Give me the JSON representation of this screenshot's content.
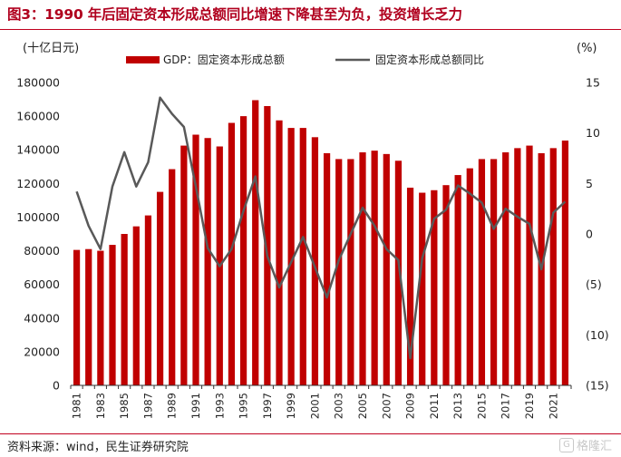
{
  "header": {
    "title": "图3：1990 年后固定资本形成总额同比增速下降甚至为负，投资增长乏力"
  },
  "footer": {
    "source": "资料来源：wind，民生证券研究院",
    "watermark": "格隆汇"
  },
  "colors": {
    "bar": "#c00000",
    "line": "#595959",
    "accent": "#c0001e"
  },
  "chart_data": {
    "type": "bar",
    "title": "",
    "left_unit": "(十亿日元)",
    "right_unit": "(%)",
    "legend_position": "top",
    "grid": false,
    "x": [
      1981,
      1982,
      1983,
      1984,
      1985,
      1986,
      1987,
      1988,
      1989,
      1990,
      1991,
      1992,
      1993,
      1994,
      1995,
      1996,
      1997,
      1998,
      1999,
      2000,
      2001,
      2002,
      2003,
      2004,
      2005,
      2006,
      2007,
      2008,
      2009,
      2010,
      2011,
      2012,
      2013,
      2014,
      2015,
      2016,
      2017,
      2018,
      2019,
      2020,
      2021,
      2022
    ],
    "x_tick_labels": [
      "1981",
      "1983",
      "1985",
      "1987",
      "1989",
      "1991",
      "1993",
      "1995",
      "1997",
      "1999",
      "2001",
      "2003",
      "2005",
      "2007",
      "2009",
      "2011",
      "2013",
      "2015",
      "2017",
      "2019",
      "2021"
    ],
    "ylim_left": [
      0,
      180000
    ],
    "yticks_left": [
      "0",
      "20000",
      "40000",
      "60000",
      "80000",
      "100000",
      "120000",
      "140000",
      "160000",
      "180000"
    ],
    "ylim_right": [
      -15,
      15
    ],
    "yticks_right": [
      "(15)",
      "(10)",
      "(5)",
      "0",
      "5",
      "10",
      "15"
    ],
    "series": [
      {
        "name": "GDP：固定资本形成总额",
        "type": "bar",
        "axis": "left",
        "values": [
          80500,
          81000,
          80000,
          83500,
          90000,
          94500,
          101000,
          115000,
          128500,
          142500,
          149000,
          147000,
          142000,
          156000,
          160000,
          169500,
          166000,
          157500,
          153000,
          153000,
          147500,
          138000,
          134500,
          134500,
          138500,
          139500,
          137500,
          133500,
          117500,
          114500,
          116000,
          119000,
          125000,
          129000,
          134500,
          134500,
          138500,
          141000,
          142500,
          138000,
          141000,
          145500
        ]
      },
      {
        "name": "固定资本形成总额同比",
        "type": "line",
        "axis": "right",
        "values": [
          4.2,
          0.8,
          -1.5,
          4.7,
          8.1,
          4.7,
          7.1,
          13.5,
          11.9,
          10.6,
          4.7,
          -1.4,
          -3.2,
          -1.5,
          2.3,
          5.7,
          -2.2,
          -5.3,
          -2.8,
          -0.3,
          -3.3,
          -6.3,
          -2.6,
          0.0,
          2.6,
          0.8,
          -1.5,
          -2.6,
          -12.3,
          -2.4,
          1.5,
          2.4,
          4.8,
          4.0,
          3.1,
          0.5,
          2.5,
          1.7,
          1.0,
          -3.5,
          2.1,
          3.2
        ]
      }
    ]
  }
}
